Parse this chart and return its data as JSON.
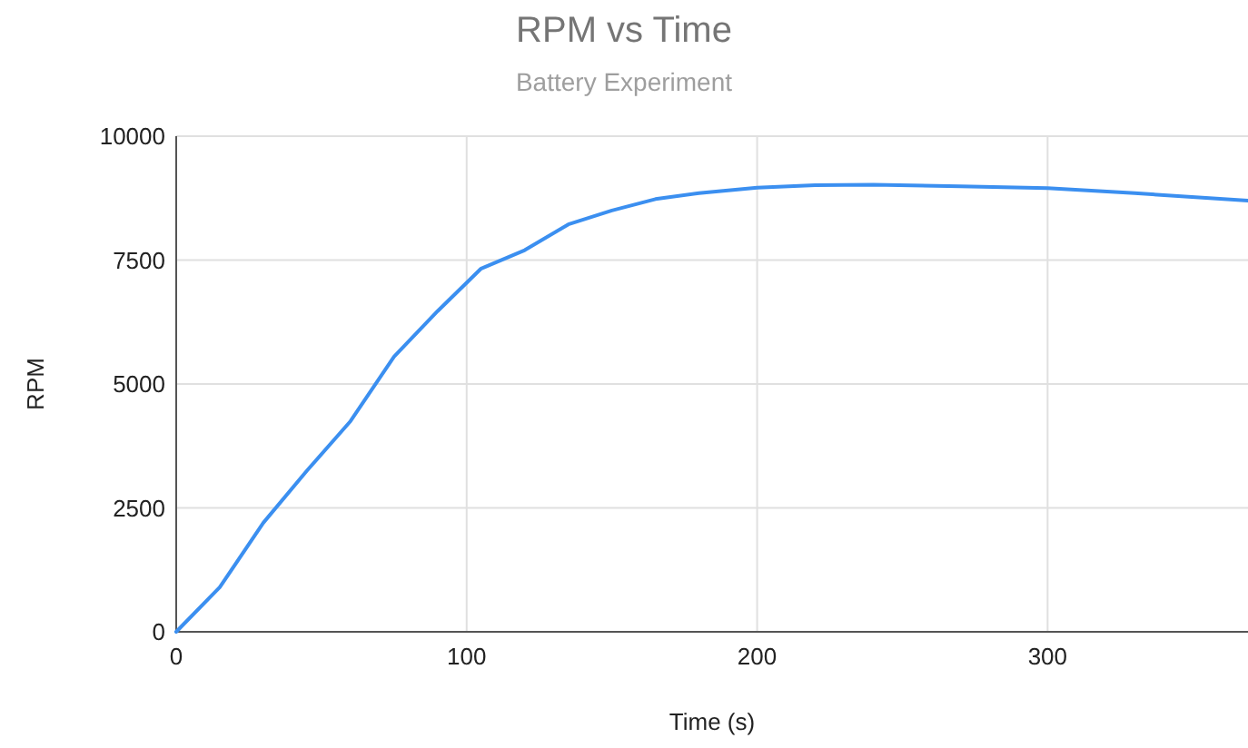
{
  "chart_data": {
    "type": "line",
    "title": "RPM vs Time",
    "subtitle": "Battery Experiment",
    "xlabel": "Time (s)",
    "ylabel": "RPM",
    "x": [
      0,
      15,
      30,
      45,
      60,
      75,
      90,
      105,
      120,
      135,
      150,
      165,
      180,
      200,
      220,
      240,
      270,
      300,
      330,
      369
    ],
    "series": [
      {
        "color": "#3b8ff0",
        "values": [
          0,
          900,
          2200,
          3250,
          4250,
          5550,
          6470,
          7330,
          7700,
          8220,
          8500,
          8730,
          8850,
          8960,
          9010,
          9020,
          8990,
          8950,
          8850,
          8700
        ]
      }
    ],
    "xlim": [
      0,
      369
    ],
    "ylim": [
      0,
      10000
    ],
    "xticks": [
      0,
      100,
      200,
      300
    ],
    "yticks": [
      0,
      2500,
      5000,
      7500,
      10000
    ],
    "grid": true,
    "marker": "none",
    "line_style": "solid"
  }
}
